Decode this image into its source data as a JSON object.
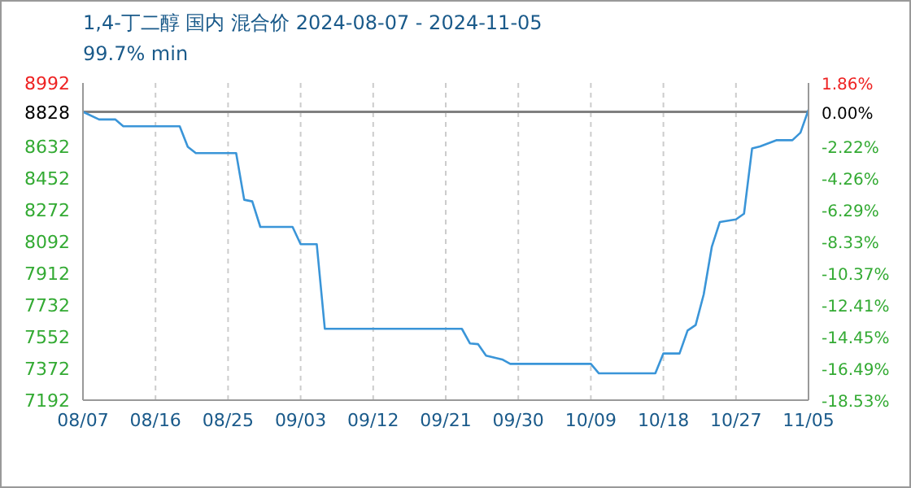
{
  "chart_data": {
    "type": "line",
    "title": "1,4-丁二醇 国内 混合价 2024-08-07 - 2024-11-05",
    "subtitle": "99.7% min",
    "x": [
      "--08-07",
      "--08-09",
      "--08-11",
      "--08-12",
      "--08-19",
      "--08-20",
      "--08-21",
      "--08-26",
      "--08-27",
      "--08-28",
      "--08-29",
      "--09-02",
      "--09-03",
      "--09-05",
      "--09-06",
      "--09-23",
      "--09-24",
      "--09-25",
      "--09-26",
      "--09-28",
      "--09-29",
      "--10-09",
      "--10-10",
      "--10-17",
      "--10-18",
      "--10-20",
      "--10-21",
      "--10-22",
      "--10-23",
      "--10-24",
      "--10-25",
      "--10-27",
      "--10-28",
      "--10-29",
      "--10-30",
      "--11-01",
      "--11-03",
      "--11-04",
      "--11-05"
    ],
    "series": [
      {
        "color": "#3a95d8",
        "values": [
          8828,
          8785,
          8785,
          8746,
          8746,
          8630,
          8594,
          8594,
          8329,
          8320,
          8175,
          8175,
          8077,
          8077,
          7597,
          7597,
          7514,
          7510,
          7445,
          7423,
          7398,
          7398,
          7344,
          7344,
          7457,
          7457,
          7587,
          7618,
          7792,
          8061,
          8203,
          8218,
          8250,
          8620,
          8632,
          8667,
          8667,
          8710,
          8840
        ]
      }
    ],
    "xlim": [
      "--08-07",
      "--11-05"
    ],
    "xticks": [
      {
        "value": "--08-07",
        "label": "08/07"
      },
      {
        "value": "--08-16",
        "label": "08/16"
      },
      {
        "value": "--08-25",
        "label": "08/25"
      },
      {
        "value": "--09-03",
        "label": "09/03"
      },
      {
        "value": "--09-12",
        "label": "09/12"
      },
      {
        "value": "--09-21",
        "label": "09/21"
      },
      {
        "value": "--09-30",
        "label": "09/30"
      },
      {
        "value": "--10-09",
        "label": "10/09"
      },
      {
        "value": "--10-18",
        "label": "10/18"
      },
      {
        "value": "--10-27",
        "label": "10/27"
      },
      {
        "value": "--11-05",
        "label": "11/05"
      }
    ],
    "ylim": [
      7192,
      8992
    ],
    "yticks": [
      7192,
      7372,
      7552,
      7732,
      7912,
      8092,
      8272,
      8452,
      8632,
      8828,
      8992
    ],
    "y2lim": [
      -18.53,
      1.86
    ],
    "y2ticks": [
      {
        "value": -18.53,
        "label": "-18.53%"
      },
      {
        "value": -16.49,
        "label": "-16.49%"
      },
      {
        "value": -14.45,
        "label": "-14.45%"
      },
      {
        "value": -12.41,
        "label": "-12.41%"
      },
      {
        "value": -10.37,
        "label": "-10.37%"
      },
      {
        "value": -8.33,
        "label": "-8.33%"
      },
      {
        "value": -6.29,
        "label": "-6.29%"
      },
      {
        "value": -4.26,
        "label": "-4.26%"
      },
      {
        "value": -2.22,
        "label": "-2.22%"
      },
      {
        "value": 0,
        "label": "0.00%"
      },
      {
        "value": 1.86,
        "label": "1.86%"
      }
    ],
    "ref_lines": [
      {
        "axis": "y",
        "value": 8828,
        "color": "#808080"
      }
    ],
    "grid": true,
    "marker": "none",
    "line_style": "solid"
  }
}
